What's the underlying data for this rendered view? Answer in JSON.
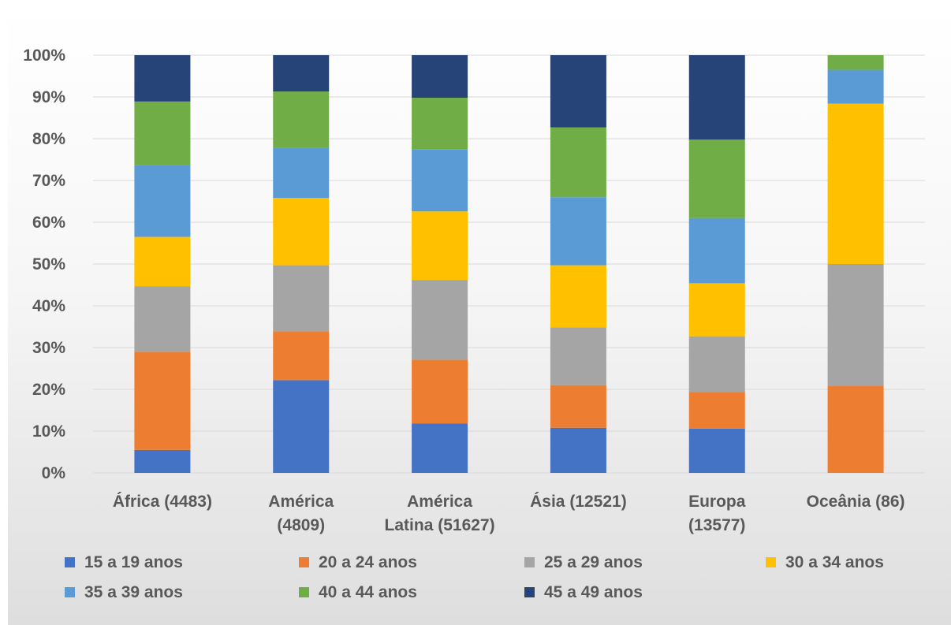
{
  "chart_data": {
    "type": "bar",
    "stacked": "percent",
    "categories": [
      [
        "África (4483)"
      ],
      [
        "América",
        "(4809)"
      ],
      [
        "América",
        "Latina (51627)"
      ],
      [
        "Ásia (12521)"
      ],
      [
        "Europa",
        "(13577)"
      ],
      [
        "Oceânia (86)"
      ]
    ],
    "series": [
      {
        "name": "15 a 19 anos",
        "color": "#4472C4",
        "values": [
          5.5,
          22.2,
          11.8,
          10.8,
          10.6,
          0
        ]
      },
      {
        "name": "20 a 24 anos",
        "color": "#ED7D31",
        "values": [
          23.5,
          11.7,
          15.3,
          10.2,
          8.8,
          20.9
        ]
      },
      {
        "name": "25 a 29 anos",
        "color": "#A5A5A5",
        "values": [
          15.7,
          15.8,
          19.1,
          13.8,
          13.3,
          29.1
        ]
      },
      {
        "name": "30 a 34 anos",
        "color": "#FFC000",
        "values": [
          11.8,
          16.1,
          16.4,
          14.9,
          12.7,
          38.4
        ]
      },
      {
        "name": "35 a 39 anos",
        "color": "#5B9BD5",
        "values": [
          17.1,
          12.1,
          14.8,
          16.3,
          15.6,
          8.1
        ]
      },
      {
        "name": "40 a 44 anos",
        "color": "#70AD47",
        "values": [
          15.3,
          13.4,
          12.4,
          16.7,
          18.8,
          3.5
        ]
      },
      {
        "name": "45 a 49 anos",
        "color": "#264478",
        "values": [
          11.1,
          8.7,
          10.2,
          17.3,
          20.2,
          0
        ]
      }
    ],
    "y_ticks": [
      "0%",
      "10%",
      "20%",
      "30%",
      "40%",
      "50%",
      "60%",
      "70%",
      "80%",
      "90%",
      "100%"
    ],
    "ylim": [
      0,
      100
    ],
    "grid": true,
    "legend_position": "bottom"
  }
}
